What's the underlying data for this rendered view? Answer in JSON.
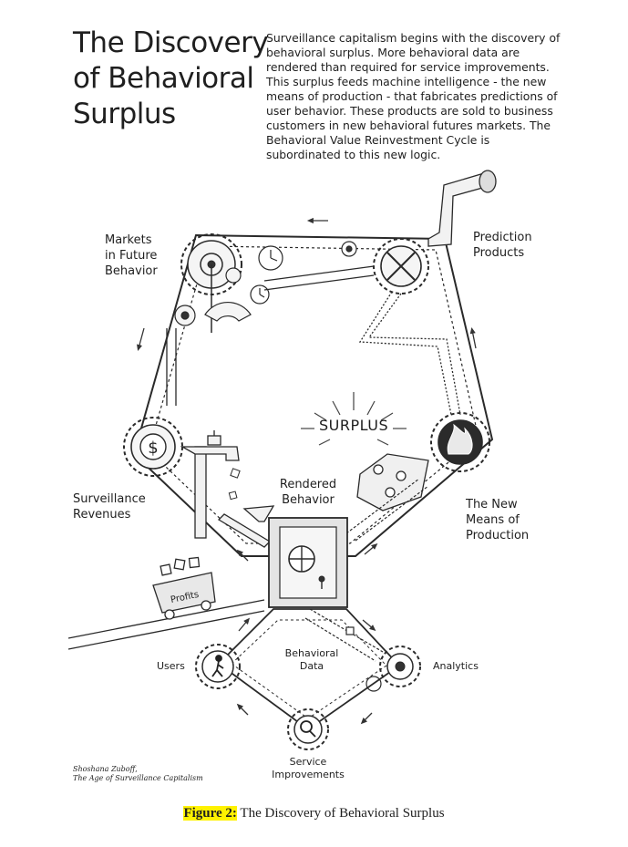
{
  "title_lines": [
    "The Discovery",
    "of Behavioral",
    "Surplus"
  ],
  "intro_lines": [
    "Surveillance capitalism begins with the discovery of",
    "behavioral surplus. More behavioral data are",
    "rendered than required for service improvements.",
    "This surplus feeds machine intelligence - the new",
    "means of production - that fabricates predictions of",
    "user behavior. These products are sold to business",
    "customers in new behavioral futures markets. The",
    "Behavioral Value Reinvestment Cycle is",
    "subordinated to this new logic."
  ],
  "labels": {
    "markets": [
      "Markets",
      "in Future",
      "Behavior"
    ],
    "prediction": [
      "Prediction",
      "Products"
    ],
    "surplus": "SURPLUS",
    "rendered": [
      "Rendered",
      "Behavior"
    ],
    "surveillance": [
      "Surveillance",
      "Revenues"
    ],
    "means": [
      "The New",
      "Means of",
      "Production"
    ],
    "profits": "Profits",
    "users": "Users",
    "behavioral_data": [
      "Behavioral",
      "Data"
    ],
    "analytics": "Analytics",
    "service": [
      "Service",
      "Improvements"
    ],
    "dollar": "$"
  },
  "credit": [
    "Shoshana Zuboff,",
    "The Age of Surveillance Capitalism"
  ],
  "caption": {
    "tag": "Figure 2:",
    "text": " The Discovery of Behavioral Surplus"
  }
}
